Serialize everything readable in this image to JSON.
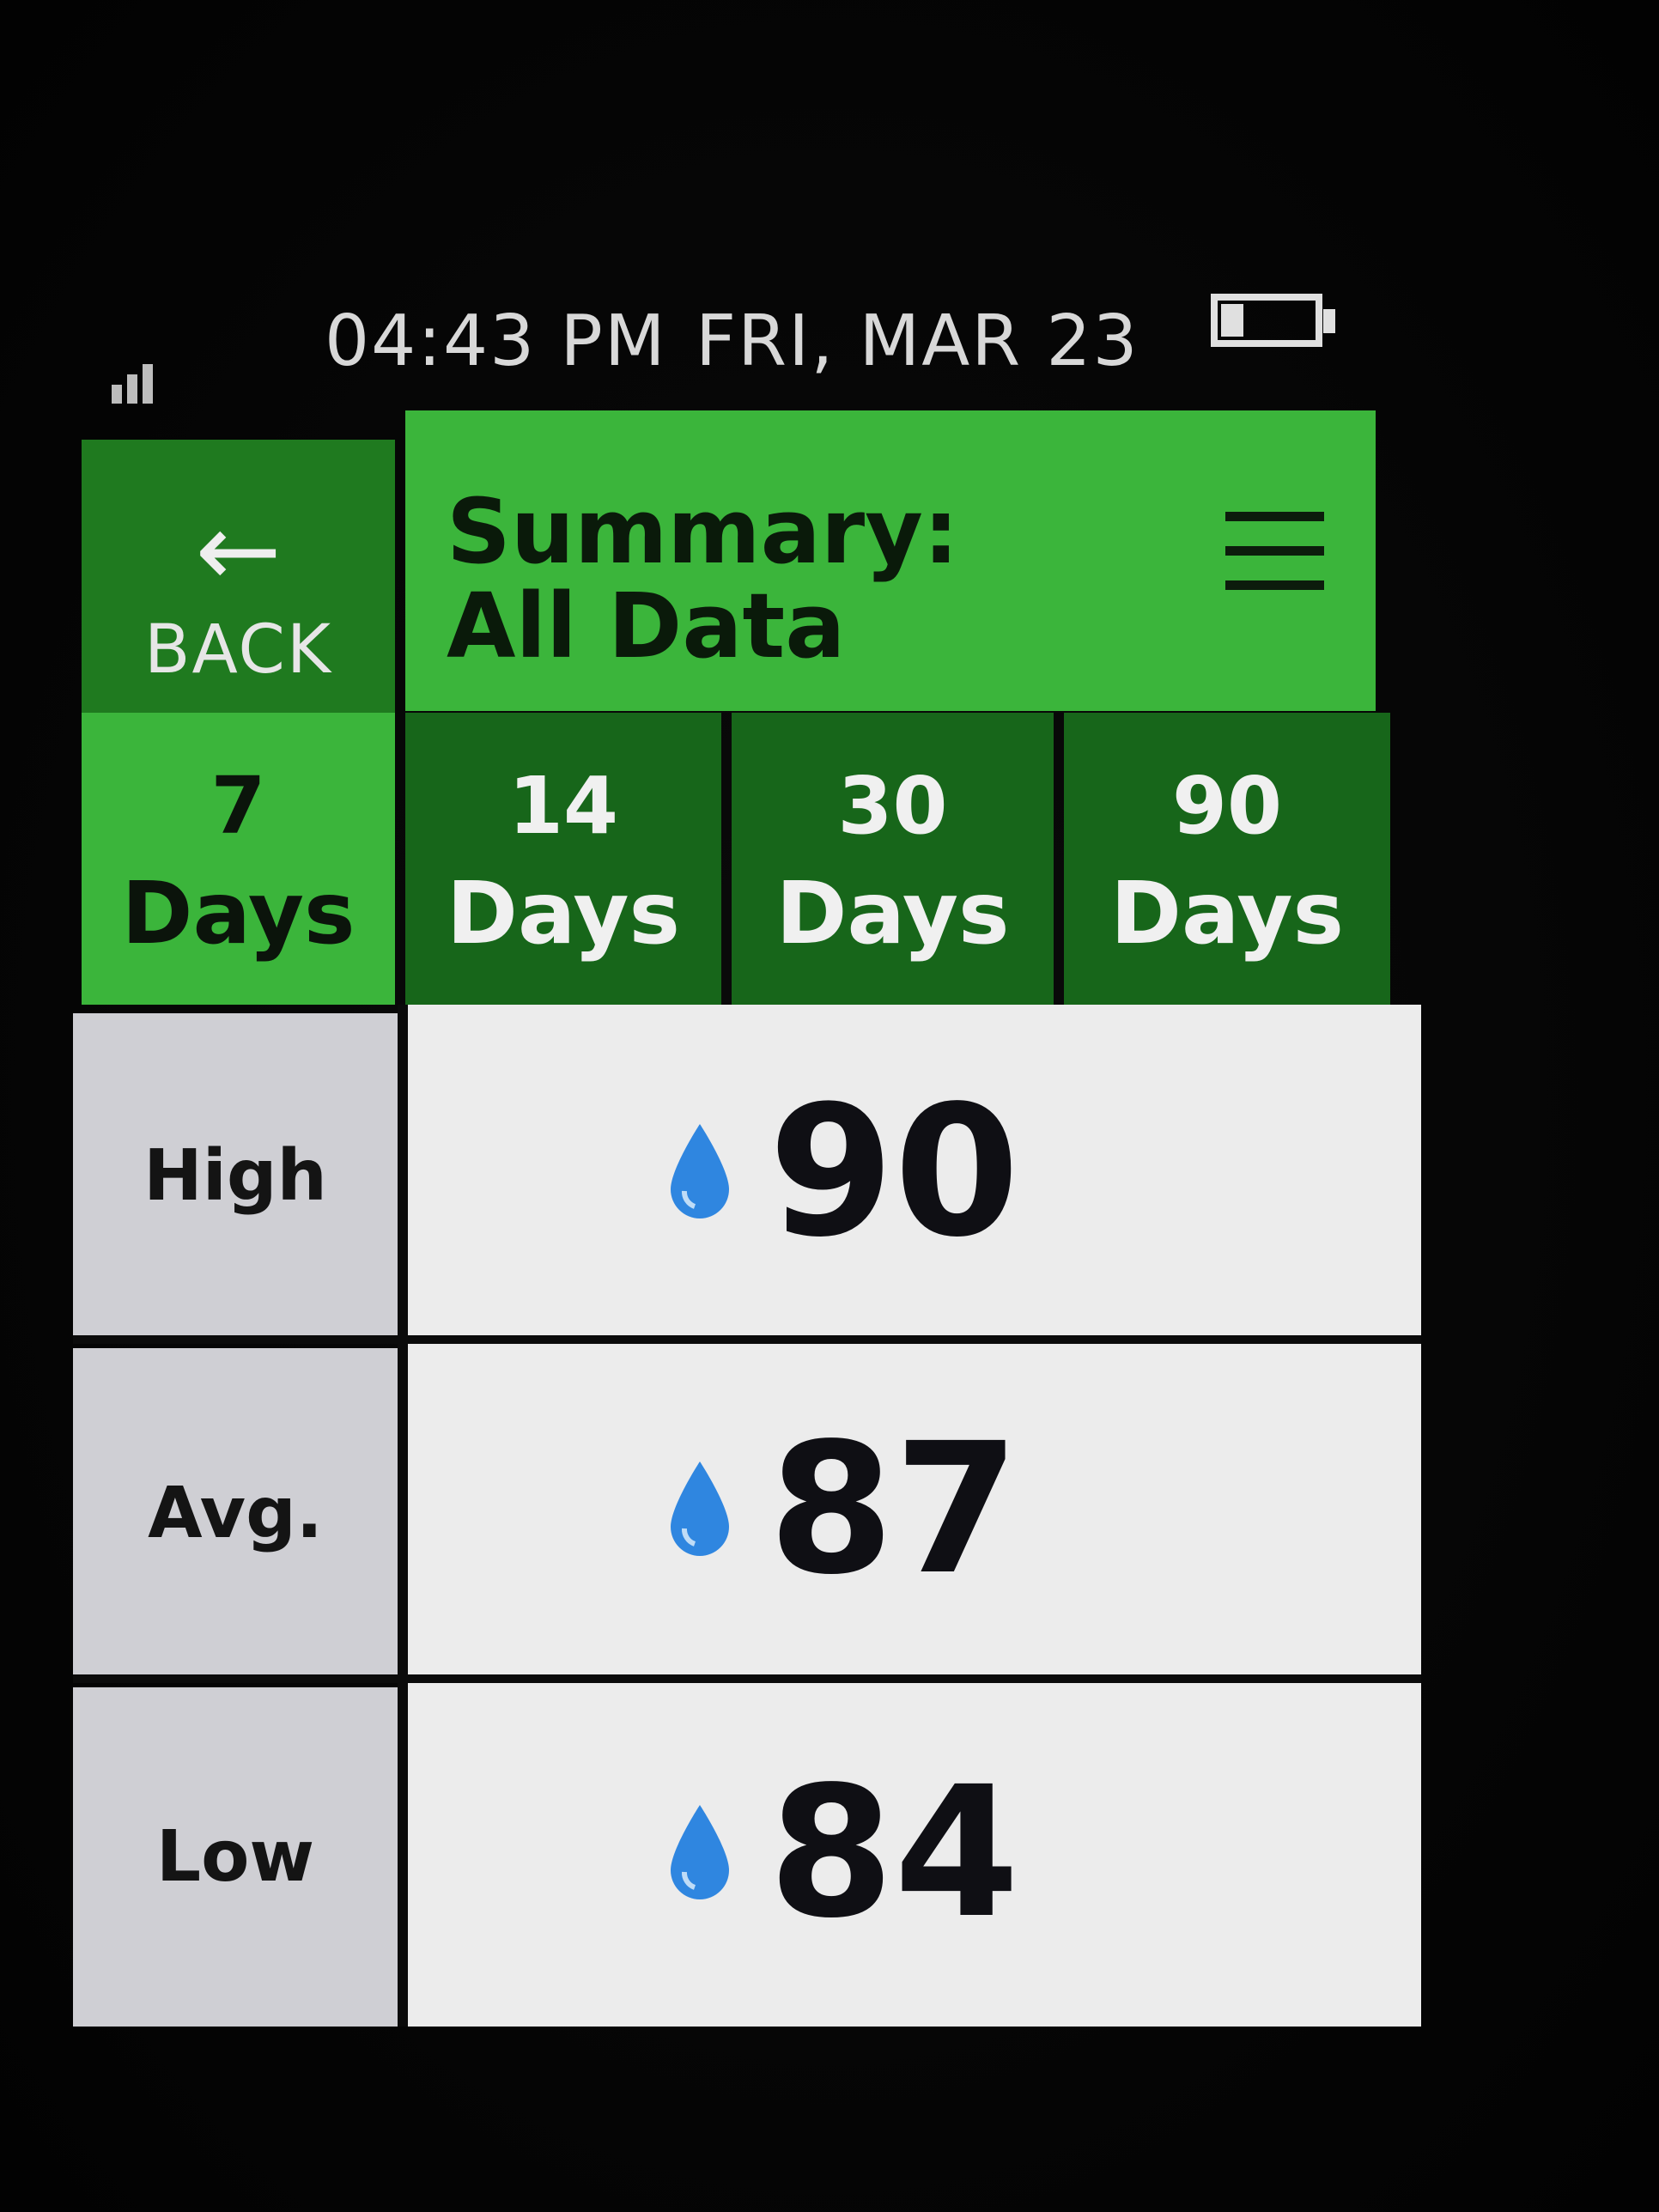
{
  "status": {
    "time": "04:43 PM",
    "date": "FRI, MAR 23",
    "icons": {
      "signal": "signal-icon",
      "battery": "battery-icon"
    }
  },
  "header": {
    "back_label": "BACK",
    "back_icon": "arrow-left-icon",
    "title_line1": "Summary:",
    "title_line2": "All Data",
    "menu_icon": "hamburger-menu-icon"
  },
  "tabs": [
    {
      "num": "7",
      "unit": "Days",
      "selected": true
    },
    {
      "num": "14",
      "unit": "Days",
      "selected": false
    },
    {
      "num": "30",
      "unit": "Days",
      "selected": false
    },
    {
      "num": "90",
      "unit": "Days",
      "selected": false
    }
  ],
  "rows": [
    {
      "label": "High",
      "value": "90",
      "icon": "blood-drop-icon"
    },
    {
      "label": "Avg.",
      "value": "87",
      "icon": "blood-drop-icon"
    },
    {
      "label": "Low",
      "value": "84",
      "icon": "blood-drop-icon"
    }
  ],
  "colors": {
    "selected_tab": "#3bb53b",
    "tab": "#17661a",
    "title_bar": "#3bb53b",
    "back_button": "#1f7a1f",
    "drop": "#2f86e0"
  }
}
